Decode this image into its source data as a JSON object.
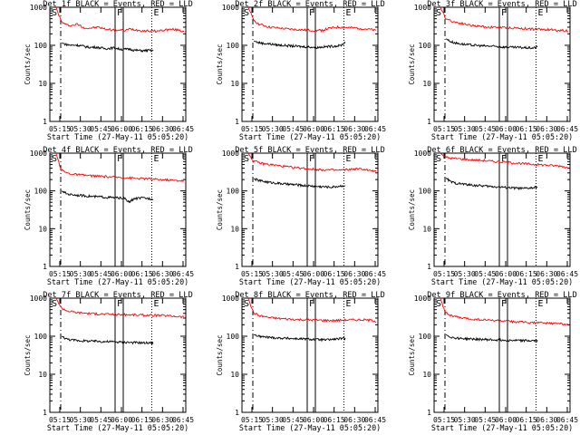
{
  "chart_data": [
    {
      "type": "line",
      "title": "Det 1f BLACK = Events, RED = LLD",
      "xlabel": "Start Time (27-May-11 05:05:20)",
      "ylabel": "Counts/sec",
      "yscale": "log",
      "ylim": [
        1,
        1000
      ],
      "x_ticks": [
        "05:15",
        "05:30",
        "05:45",
        "06:00",
        "06:15",
        "06:30",
        "06:45"
      ],
      "y_ticks": [
        "1",
        "10",
        "100",
        "1000"
      ],
      "markers": [
        {
          "label": "S",
          "style": "dashed"
        },
        {
          "label": "F",
          "style": "solid"
        },
        {
          "label": "E",
          "style": "dotted"
        }
      ],
      "series": [
        {
          "color": "#ff0000",
          "values": [
            1000,
            420,
            340,
            330,
            360,
            300,
            280,
            290,
            300,
            270,
            260,
            255,
            250,
            245,
            270,
            255,
            245,
            240,
            238,
            235,
            250,
            260,
            262,
            250,
            232
          ]
        },
        {
          "color": "#000000",
          "values": [
            115,
            105,
            100,
            102,
            98,
            92,
            88,
            90,
            86,
            82,
            84,
            86,
            80,
            78,
            80,
            75,
            73,
            72,
            74,
            72
          ]
        }
      ]
    },
    {
      "type": "line",
      "title": "Det 2f BLACK = Events, RED = LLD",
      "xlabel": "Start Time (27-May-11 05:05:20)",
      "ylabel": "Counts/sec",
      "yscale": "log",
      "ylim": [
        1,
        1000
      ],
      "x_ticks": [
        "05:15",
        "05:30",
        "05:45",
        "06:00",
        "06:15",
        "06:30",
        "06:45"
      ],
      "y_ticks": [
        "1",
        "10",
        "100",
        "1000"
      ],
      "markers": [
        {
          "label": "S",
          "style": "dashed"
        },
        {
          "label": "F",
          "style": "solid"
        },
        {
          "label": "E",
          "style": "dotted"
        }
      ],
      "series": [
        {
          "color": "#ff0000",
          "values": [
            1000,
            470,
            360,
            330,
            300,
            290,
            280,
            270,
            265,
            260,
            255,
            250,
            248,
            245,
            250,
            275,
            290,
            300,
            295,
            290,
            285,
            280,
            270,
            260,
            240
          ]
        },
        {
          "color": "#000000",
          "values": [
            130,
            118,
            112,
            110,
            106,
            102,
            100,
            98,
            96,
            94,
            92,
            92,
            90,
            88,
            90,
            92,
            94,
            96,
            98,
            120
          ]
        }
      ]
    },
    {
      "type": "line",
      "title": "Det 3f BLACK = Events, RED = LLD",
      "xlabel": "Start Time (27-May-11 05:05:20)",
      "ylabel": "Counts/sec",
      "yscale": "log",
      "ylim": [
        1,
        1000
      ],
      "x_ticks": [
        "05:15",
        "05:30",
        "05:45",
        "06:00",
        "06:15",
        "06:30",
        "06:45"
      ],
      "y_ticks": [
        "1",
        "10",
        "100",
        "1000"
      ],
      "markers": [
        {
          "label": "S",
          "style": "dashed"
        },
        {
          "label": "F",
          "style": "solid"
        },
        {
          "label": "E",
          "style": "dotted"
        }
      ],
      "series": [
        {
          "color": "#ff0000",
          "values": [
            1000,
            520,
            440,
            400,
            380,
            350,
            330,
            320,
            310,
            300,
            300,
            295,
            290,
            288,
            285,
            280,
            275,
            270,
            265,
            262,
            260,
            255,
            250,
            245,
            240
          ]
        },
        {
          "color": "#000000",
          "values": [
            150,
            125,
            115,
            110,
            105,
            102,
            100,
            98,
            96,
            95,
            94,
            92,
            90,
            90,
            88,
            88,
            87,
            86,
            85,
            90
          ]
        }
      ]
    },
    {
      "type": "line",
      "title": "Det 4f BLACK = Events, RED = LLD",
      "xlabel": "Start Time (27-May-11 05:05:20)",
      "ylabel": "Counts/sec",
      "yscale": "log",
      "ylim": [
        1,
        1000
      ],
      "x_ticks": [
        "05:15",
        "05:30",
        "05:45",
        "06:00",
        "06:15",
        "06:30",
        "06:45"
      ],
      "y_ticks": [
        "1",
        "10",
        "100",
        "1000"
      ],
      "markers": [
        {
          "label": "S",
          "style": "dashed"
        },
        {
          "label": "F",
          "style": "solid"
        },
        {
          "label": "E",
          "style": "dotted"
        }
      ],
      "series": [
        {
          "color": "#ff0000",
          "values": [
            1000,
            360,
            300,
            280,
            270,
            260,
            255,
            250,
            245,
            240,
            235,
            230,
            228,
            225,
            220,
            215,
            212,
            210,
            205,
            200,
            198,
            195,
            190,
            188,
            185
          ]
        },
        {
          "color": "#000000",
          "values": [
            100,
            85,
            80,
            78,
            76,
            74,
            72,
            70,
            70,
            68,
            67,
            66,
            65,
            64,
            50,
            62,
            64,
            65,
            63,
            62
          ]
        }
      ]
    },
    {
      "type": "line",
      "title": "Det 5f BLACK = Events, RED = LLD",
      "xlabel": "Start Time (27-May-11 05:05:20)",
      "ylabel": "Counts/sec",
      "yscale": "log",
      "ylim": [
        1,
        1000
      ],
      "x_ticks": [
        "05:15",
        "05:30",
        "05:45",
        "06:00",
        "06:15",
        "06:30",
        "06:45"
      ],
      "y_ticks": [
        "1",
        "10",
        "100",
        "1000"
      ],
      "markers": [
        {
          "label": "S",
          "style": "dashed"
        },
        {
          "label": "F",
          "style": "solid"
        },
        {
          "label": "E",
          "style": "dotted"
        }
      ],
      "series": [
        {
          "color": "#ff0000",
          "values": [
            1000,
            620,
            560,
            520,
            500,
            480,
            460,
            440,
            420,
            410,
            400,
            390,
            380,
            370,
            365,
            360,
            355,
            350,
            360,
            370,
            380,
            380,
            370,
            340,
            330
          ]
        },
        {
          "color": "#000000",
          "values": [
            210,
            190,
            180,
            170,
            165,
            160,
            155,
            150,
            148,
            145,
            140,
            138,
            135,
            132,
            130,
            128,
            126,
            130,
            135,
            140
          ]
        }
      ]
    },
    {
      "type": "line",
      "title": "Det 6f BLACK = Events, RED = LLD",
      "xlabel": "Start Time (27-May-11 05:05:20)",
      "ylabel": "Counts/sec",
      "yscale": "log",
      "ylim": [
        1,
        1000
      ],
      "x_ticks": [
        "05:15",
        "05:30",
        "05:45",
        "06:00",
        "06:15",
        "06:30",
        "06:45"
      ],
      "y_ticks": [
        "1",
        "10",
        "100",
        "1000"
      ],
      "markers": [
        {
          "label": "S",
          "style": "dashed"
        },
        {
          "label": "F",
          "style": "solid"
        },
        {
          "label": "E",
          "style": "dotted"
        }
      ],
      "series": [
        {
          "color": "#ff0000",
          "values": [
            1000,
            780,
            740,
            720,
            700,
            680,
            660,
            650,
            640,
            620,
            600,
            590,
            580,
            560,
            550,
            540,
            520,
            510,
            500,
            490,
            480,
            470,
            460,
            450,
            400
          ]
        },
        {
          "color": "#000000",
          "values": [
            220,
            175,
            160,
            155,
            150,
            145,
            140,
            138,
            135,
            132,
            130,
            128,
            125,
            122,
            120,
            118,
            115,
            118,
            120,
            125
          ]
        }
      ]
    },
    {
      "type": "line",
      "title": "Det 7f BLACK = Events, RED = LLD",
      "xlabel": "Start Time (27-May-11 05:05:20)",
      "ylabel": "Counts/sec",
      "yscale": "log",
      "ylim": [
        1,
        1000
      ],
      "x_ticks": [
        "05:15",
        "05:30",
        "05:45",
        "06:00",
        "06:15",
        "06:30",
        "06:45"
      ],
      "y_ticks": [
        "1",
        "10",
        "100",
        "1000"
      ],
      "markers": [
        {
          "label": "S",
          "style": "dashed"
        },
        {
          "label": "F",
          "style": "solid"
        },
        {
          "label": "E",
          "style": "dotted"
        }
      ],
      "series": [
        {
          "color": "#ff0000",
          "values": [
            1000,
            560,
            470,
            440,
            420,
            410,
            400,
            390,
            385,
            380,
            378,
            375,
            370,
            368,
            365,
            362,
            360,
            358,
            355,
            352,
            350,
            345,
            340,
            330,
            320
          ]
        },
        {
          "color": "#000000",
          "values": [
            100,
            85,
            80,
            78,
            76,
            75,
            74,
            74,
            73,
            72,
            72,
            71,
            70,
            70,
            69,
            68,
            68,
            67,
            67,
            66
          ]
        }
      ]
    },
    {
      "type": "line",
      "title": "Det 8f BLACK = Events, RED = LLD",
      "xlabel": "Start Time (27-May-11 05:05:20)",
      "ylabel": "Counts/sec",
      "yscale": "log",
      "ylim": [
        1,
        1000
      ],
      "x_ticks": [
        "05:15",
        "05:30",
        "05:45",
        "06:00",
        "06:15",
        "06:30",
        "06:45"
      ],
      "y_ticks": [
        "1",
        "10",
        "100",
        "1000"
      ],
      "markers": [
        {
          "label": "S",
          "style": "dashed"
        },
        {
          "label": "F",
          "style": "solid"
        },
        {
          "label": "E",
          "style": "dotted"
        }
      ],
      "series": [
        {
          "color": "#ff0000",
          "values": [
            1000,
            420,
            350,
            330,
            310,
            300,
            290,
            285,
            280,
            275,
            272,
            270,
            268,
            265,
            262,
            260,
            258,
            262,
            265,
            268,
            270,
            270,
            268,
            262,
            250
          ]
        },
        {
          "color": "#000000",
          "values": [
            110,
            100,
            96,
            94,
            92,
            90,
            89,
            88,
            87,
            86,
            85,
            84,
            83,
            82,
            81,
            80,
            82,
            84,
            86,
            88
          ]
        }
      ]
    },
    {
      "type": "line",
      "title": "Det 9f BLACK = Events, RED = LLD",
      "xlabel": "Start Time (27-May-11 05:05:20)",
      "ylabel": "Counts/sec",
      "yscale": "log",
      "ylim": [
        1,
        1000
      ],
      "x_ticks": [
        "05:15",
        "05:30",
        "05:45",
        "06:00",
        "06:15",
        "06:30",
        "06:45"
      ],
      "y_ticks": [
        "1",
        "10",
        "100",
        "1000"
      ],
      "markers": [
        {
          "label": "S",
          "style": "dashed"
        },
        {
          "label": "F",
          "style": "solid"
        },
        {
          "label": "E",
          "style": "dotted"
        }
      ],
      "series": [
        {
          "color": "#ff0000",
          "values": [
            1000,
            420,
            350,
            320,
            300,
            290,
            280,
            275,
            270,
            265,
            260,
            255,
            250,
            245,
            240,
            235,
            230,
            228,
            225,
            222,
            220,
            218,
            215,
            212,
            210
          ]
        },
        {
          "color": "#000000",
          "values": [
            110,
            95,
            90,
            88,
            86,
            85,
            84,
            83,
            82,
            81,
            80,
            80,
            79,
            78,
            78,
            77,
            77,
            76,
            76,
            75
          ]
        }
      ]
    }
  ]
}
